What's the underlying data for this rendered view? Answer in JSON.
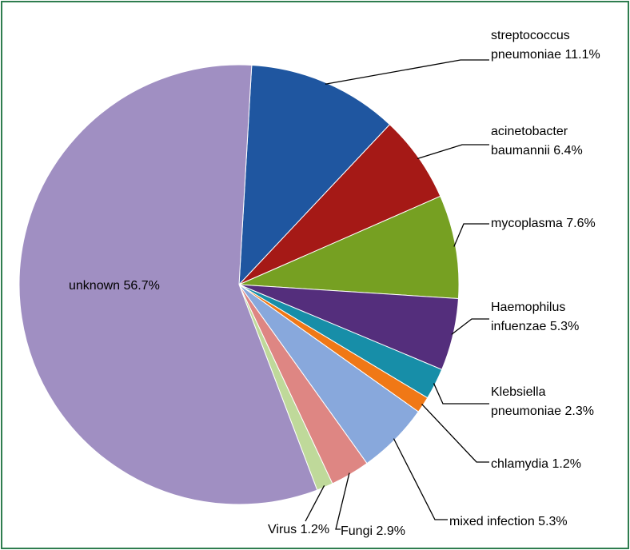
{
  "chart_data": {
    "type": "pie",
    "title": "",
    "slices": [
      {
        "label": "streptococcus pneumoniae",
        "value": 11.1,
        "label_text": [
          "streptococcus",
          "pneumoniae 11.1%"
        ],
        "color": "#1f56a0"
      },
      {
        "label": "acinetobacter baumannii",
        "value": 6.4,
        "label_text": [
          "acinetobacter",
          "baumannii 6.4%"
        ],
        "color": "#a51916"
      },
      {
        "label": "mycoplasma",
        "value": 7.6,
        "label_text": [
          "mycoplasma 7.6%"
        ],
        "color": "#76a022"
      },
      {
        "label": "Haemophilus infuenzae",
        "value": 5.3,
        "label_text": [
          "Haemophilus",
          "infuenzae 5.3%"
        ],
        "color": "#542e7c"
      },
      {
        "label": "Klebsiella pneumoniae",
        "value": 2.3,
        "label_text": [
          "Klebsiella",
          "pneumoniae 2.3%"
        ],
        "color": "#178ea8"
      },
      {
        "label": "chlamydia",
        "value": 1.2,
        "label_text": [
          "chlamydia 1.2%"
        ],
        "color": "#f07816"
      },
      {
        "label": "mixed infection",
        "value": 5.3,
        "label_text": [
          "mixed infection 5.3%"
        ],
        "color": "#88a8dc"
      },
      {
        "label": "Fungi",
        "value": 2.9,
        "label_text": [
          "Fungi 2.9%"
        ],
        "color": "#de8683"
      },
      {
        "label": "Virus",
        "value": 1.2,
        "label_text": [
          "Virus 1.2%"
        ],
        "color": "#bfd99a"
      },
      {
        "label": "unknown",
        "value": 56.7,
        "label_text": [
          "unknown 56.7%"
        ],
        "color": "#a08fc2"
      }
    ]
  }
}
